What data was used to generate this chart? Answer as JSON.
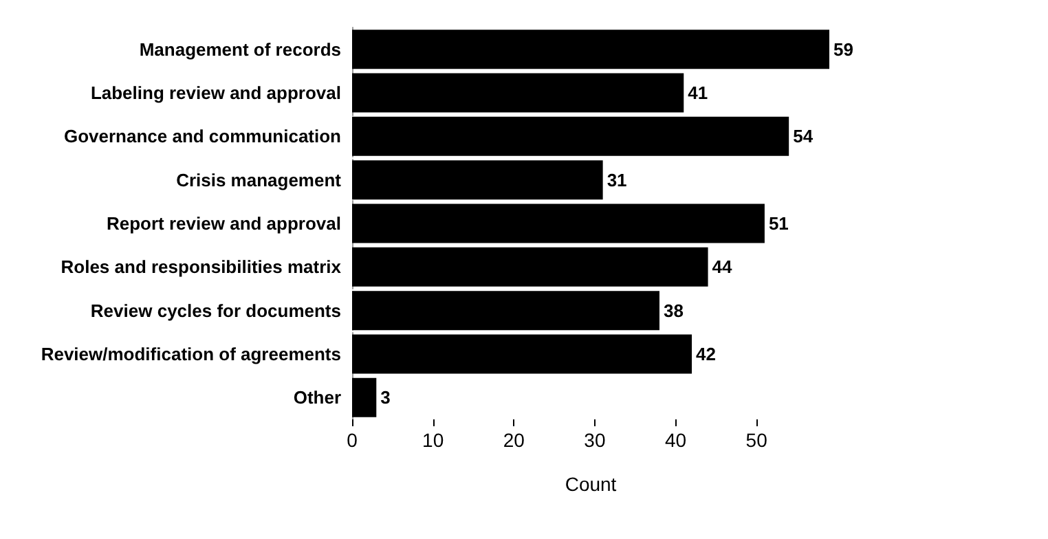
{
  "chart_data": {
    "type": "bar",
    "orientation": "horizontal",
    "xlabel": "Count",
    "categories": [
      "Management of records",
      "Labeling review and approval",
      "Governance and communication",
      "Crisis management",
      "Report review and approval",
      "Roles and responsibilities matrix",
      "Review cycles for documents",
      "Review/modification of agreements",
      "Other"
    ],
    "values": [
      59,
      41,
      54,
      31,
      51,
      44,
      38,
      42,
      3
    ],
    "color": "#000000",
    "xlim": [
      0,
      59
    ],
    "xticks": [
      0,
      10,
      20,
      30,
      40,
      50
    ],
    "data_labels": true
  }
}
